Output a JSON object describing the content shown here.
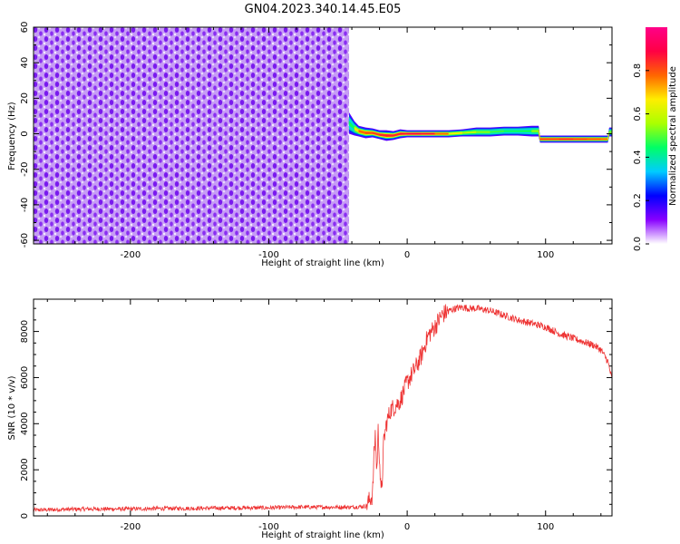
{
  "figure": {
    "title": "GN04.2023.340.14.45.E05"
  },
  "colors": {
    "spectrogram_background_low": "#7f00ff",
    "snr_line": "#ee3333",
    "colorbar_stops": [
      "#ffffff",
      "#8800ff",
      "#0000ff",
      "#00ccff",
      "#00ff66",
      "#aaff00",
      "#ffee00",
      "#ff6600",
      "#ff0044",
      "#ff0088"
    ]
  },
  "chart_data": [
    {
      "type": "heatmap",
      "name": "spectrogram",
      "xlabel": "Height of straight line (km)",
      "ylabel": "Frequency (Hz)",
      "xlim": [
        -270,
        148
      ],
      "ylim": [
        -62,
        60
      ],
      "xticks": [
        -200,
        -100,
        0,
        100
      ],
      "yticks": [
        -60,
        -40,
        -20,
        0,
        20,
        40,
        60
      ],
      "xtick_labels": [
        "-200",
        "-100",
        "0",
        "100"
      ],
      "ytick_labels": [
        "-60",
        "-40",
        "-20",
        "0",
        "20",
        "40",
        "60"
      ],
      "noise_region": {
        "x_range": [
          -270,
          -42
        ],
        "y_range": [
          -62,
          60
        ]
      },
      "signal_band": {
        "x": [
          -42,
          -38,
          -35,
          -30,
          -25,
          -20,
          -15,
          -10,
          -5,
          0,
          10,
          20,
          30,
          40,
          50,
          60,
          70,
          80,
          90,
          95,
          96,
          110,
          120,
          130,
          140,
          145,
          146,
          148
        ],
        "center_hz": [
          6,
          3,
          1.5,
          0.5,
          0.5,
          -0.5,
          -1,
          -1,
          0,
          0,
          0,
          0,
          0,
          0.5,
          1,
          1,
          1.5,
          1.5,
          1.5,
          1.5,
          -3,
          -3,
          -3,
          -3,
          -3,
          -3,
          1,
          1
        ],
        "half_width_hz": [
          6,
          4,
          3,
          3,
          2.5,
          2.5,
          3,
          2.5,
          2.5,
          2,
          2,
          2,
          2,
          2,
          2.5,
          2.5,
          2.5,
          2.5,
          3,
          3,
          2,
          2,
          2,
          2,
          2,
          2,
          2.5,
          2.5
        ],
        "peak_amplitude": [
          0.3,
          0.6,
          0.75,
          0.8,
          0.8,
          0.85,
          0.85,
          0.85,
          0.85,
          0.9,
          0.9,
          0.85,
          0.7,
          0.6,
          0.55,
          0.5,
          0.45,
          0.45,
          0.45,
          0.6,
          0.8,
          0.85,
          0.85,
          0.8,
          0.8,
          0.75,
          0.55,
          0.5
        ]
      },
      "colorbar": {
        "label": "Normalized spectral amplitude",
        "range": [
          0,
          1
        ],
        "ticks": [
          0.0,
          0.2,
          0.4,
          0.6,
          0.8
        ],
        "tick_labels": [
          "0.0",
          "0.2",
          "0.4",
          "0.6",
          "0.8"
        ]
      }
    },
    {
      "type": "line",
      "name": "snr",
      "xlabel": "Height of straight line (km)",
      "ylabel": "SNR (10 * v/v)",
      "xlim": [
        -270,
        148
      ],
      "ylim": [
        0,
        9400
      ],
      "xticks": [
        -200,
        -100,
        0,
        100
      ],
      "yticks": [
        0,
        2000,
        4000,
        6000,
        8000
      ],
      "xtick_labels": [
        "-200",
        "-100",
        "0",
        "100"
      ],
      "ytick_labels": [
        "0",
        "2000",
        "4000",
        "6000",
        "8000"
      ],
      "x": [
        -270,
        -250,
        -230,
        -200,
        -180,
        -150,
        -120,
        -100,
        -80,
        -60,
        -40,
        -30,
        -25,
        -24,
        -23,
        -22,
        -21,
        -20,
        -19,
        -18,
        -17,
        -15,
        -12,
        -10,
        -5,
        0,
        5,
        10,
        15,
        20,
        25,
        30,
        35,
        40,
        45,
        50,
        55,
        60,
        65,
        70,
        80,
        90,
        100,
        110,
        120,
        130,
        135,
        140,
        145,
        148
      ],
      "y": [
        250,
        280,
        300,
        300,
        320,
        330,
        350,
        350,
        380,
        380,
        380,
        420,
        900,
        2600,
        3600,
        1800,
        3700,
        2600,
        900,
        1600,
        3200,
        4000,
        4600,
        4700,
        5000,
        5800,
        6300,
        6900,
        7800,
        8200,
        8700,
        8900,
        9000,
        9050,
        9000,
        9000,
        8950,
        8900,
        8800,
        8700,
        8500,
        8350,
        8200,
        7900,
        7700,
        7500,
        7400,
        7200,
        6700,
        5900
      ]
    }
  ]
}
